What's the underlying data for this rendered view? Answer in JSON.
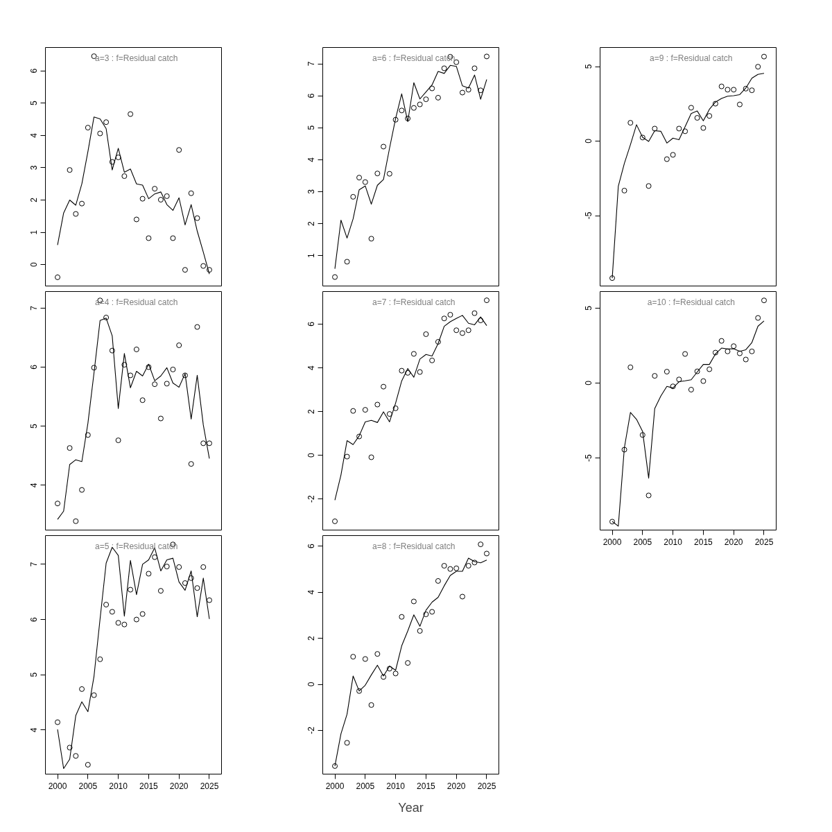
{
  "chart_data": [
    {
      "type": "line",
      "title": "a=3  :  f=Residual catch",
      "x": [
        2000,
        2001,
        2002,
        2003,
        2004,
        2005,
        2006,
        2007,
        2008,
        2009,
        2010,
        2011,
        2012,
        2013,
        2014,
        2015,
        2016,
        2017,
        2018,
        2019,
        2020,
        2021,
        2022,
        2023,
        2024,
        2025
      ],
      "xlim": [
        1998,
        2027
      ],
      "ylim": [
        -0.66,
        6.72
      ],
      "yticks": [
        0,
        1,
        2,
        3,
        4,
        5,
        6
      ],
      "tick_labels": "y",
      "series": [
        {
          "type": "scatter",
          "marker": "circle",
          "color": "#000000",
          "values": [
            -0.39,
            null,
            2.93,
            1.57,
            1.89,
            4.24,
            6.45,
            4.06,
            4.41,
            3.18,
            3.32,
            2.74,
            4.66,
            1.4,
            2.04,
            0.82,
            2.35,
            2.01,
            2.12,
            0.82,
            3.55,
            -0.16,
            2.21,
            1.44,
            -0.04,
            -0.16
          ]
        },
        {
          "color": "#000000",
          "values": [
            0.61,
            1.6,
            2.0,
            1.84,
            2.5,
            3.5,
            4.57,
            4.51,
            4.21,
            2.93,
            3.6,
            2.86,
            2.96,
            2.5,
            2.46,
            2.04,
            2.19,
            2.25,
            1.86,
            1.68,
            2.07,
            1.23,
            1.86,
            1.04,
            0.39,
            -0.29
          ]
        }
      ]
    },
    {
      "type": "line",
      "title": "a=6  :  f=Residual catch",
      "x": [
        2000,
        2001,
        2002,
        2003,
        2004,
        2005,
        2006,
        2007,
        2008,
        2009,
        2010,
        2011,
        2012,
        2013,
        2014,
        2015,
        2016,
        2017,
        2018,
        2019,
        2020,
        2021,
        2022,
        2023,
        2024,
        2025
      ],
      "xlim": [
        1998,
        2027
      ],
      "ylim": [
        0.05,
        7.51
      ],
      "yticks": [
        1,
        2,
        3,
        4,
        5,
        6,
        7
      ],
      "tick_labels": "y",
      "series": [
        {
          "type": "scatter",
          "marker": "circle",
          "color": "#000000",
          "values": [
            0.33,
            null,
            0.81,
            2.84,
            3.44,
            3.3,
            1.53,
            3.57,
            4.41,
            3.56,
            5.25,
            5.54,
            5.29,
            5.62,
            5.73,
            5.89,
            6.23,
            5.94,
            6.86,
            7.22,
            7.05,
            6.1,
            6.19,
            6.86,
            6.17,
            7.23
          ]
        },
        {
          "color": "#000000",
          "values": [
            0.59,
            2.11,
            1.55,
            2.15,
            3.06,
            3.18,
            2.61,
            3.2,
            3.38,
            4.36,
            5.29,
            6.06,
            5.19,
            6.41,
            5.9,
            6.12,
            6.34,
            6.76,
            6.7,
            6.95,
            6.92,
            6.31,
            6.24,
            6.65,
            5.89,
            6.51
          ]
        }
      ]
    },
    {
      "type": "line",
      "title": "a=9  :  f=Residual catch",
      "x": [
        2000,
        2001,
        2002,
        2003,
        2004,
        2005,
        2006,
        2007,
        2008,
        2009,
        2010,
        2011,
        2012,
        2013,
        2014,
        2015,
        2016,
        2017,
        2018,
        2019,
        2020,
        2021,
        2022,
        2023,
        2024,
        2025
      ],
      "xlim": [
        1998,
        2027
      ],
      "ylim": [
        -9.72,
        6.28
      ],
      "yticks": [
        -5,
        0,
        5
      ],
      "tick_labels": "y",
      "series": [
        {
          "type": "scatter",
          "marker": "circle",
          "color": "#000000",
          "values": [
            -9.19,
            null,
            -3.32,
            1.23,
            null,
            0.24,
            -3.01,
            0.84,
            null,
            -1.21,
            -0.92,
            0.84,
            0.66,
            2.24,
            1.56,
            0.88,
            1.69,
            2.51,
            3.67,
            3.45,
            3.45,
            2.46,
            3.52,
            3.41,
            4.99,
            5.67
          ]
        },
        {
          "color": "#000000",
          "values": [
            -9.19,
            -3.03,
            -1.49,
            -0.24,
            1.1,
            0.26,
            -0.02,
            0.7,
            0.66,
            -0.13,
            0.2,
            0.09,
            0.97,
            1.85,
            2.02,
            1.36,
            2.13,
            2.62,
            2.86,
            3.01,
            3.05,
            3.12,
            3.56,
            4.22,
            4.48,
            4.55
          ]
        }
      ]
    },
    {
      "type": "line",
      "title": "a=4  :  f=Residual catch",
      "x": [
        2000,
        2001,
        2002,
        2003,
        2004,
        2005,
        2006,
        2007,
        2008,
        2009,
        2010,
        2011,
        2012,
        2013,
        2014,
        2015,
        2016,
        2017,
        2018,
        2019,
        2020,
        2021,
        2022,
        2023,
        2024,
        2025
      ],
      "xlim": [
        1998,
        2027
      ],
      "ylim": [
        3.24,
        7.28
      ],
      "yticks": [
        4,
        5,
        6,
        7
      ],
      "tick_labels": "y",
      "series": [
        {
          "type": "scatter",
          "marker": "circle",
          "color": "#000000",
          "values": [
            3.69,
            null,
            4.63,
            3.39,
            3.92,
            4.85,
            5.99,
            7.13,
            6.84,
            6.28,
            4.76,
            6.04,
            5.86,
            6.3,
            5.44,
            6.0,
            5.71,
            5.13,
            5.72,
            5.96,
            6.37,
            5.86,
            4.36,
            6.68,
            4.71,
            4.71
          ]
        },
        {
          "color": "#000000",
          "values": [
            3.42,
            3.56,
            4.35,
            4.43,
            4.4,
            5.05,
            5.9,
            6.79,
            6.83,
            6.53,
            5.3,
            6.23,
            5.65,
            5.93,
            5.85,
            6.05,
            5.77,
            5.85,
            5.99,
            5.73,
            5.66,
            5.89,
            5.12,
            5.86,
            5.02,
            4.45
          ]
        }
      ]
    },
    {
      "type": "line",
      "title": "a=7  :  f=Residual catch",
      "x": [
        2000,
        2001,
        2002,
        2003,
        2004,
        2005,
        2006,
        2007,
        2008,
        2009,
        2010,
        2011,
        2012,
        2013,
        2014,
        2015,
        2016,
        2017,
        2018,
        2019,
        2020,
        2021,
        2022,
        2023,
        2024,
        2025
      ],
      "xlim": [
        1998,
        2027
      ],
      "ylim": [
        -3.42,
        7.49
      ],
      "yticks": [
        -2,
        0,
        2,
        4,
        6
      ],
      "tick_labels": "y",
      "series": [
        {
          "type": "scatter",
          "marker": "circle",
          "color": "#000000",
          "values": [
            -3.02,
            null,
            -0.06,
            2.03,
            0.86,
            2.08,
            -0.09,
            2.32,
            3.14,
            1.89,
            2.15,
            3.87,
            3.77,
            4.64,
            3.81,
            5.54,
            4.34,
            5.19,
            6.26,
            6.43,
            5.72,
            5.59,
            5.72,
            6.5,
            6.17,
            7.09
          ]
        },
        {
          "color": "#000000",
          "values": [
            -2.05,
            -0.9,
            0.67,
            0.49,
            0.89,
            1.53,
            1.6,
            1.5,
            1.99,
            1.53,
            2.39,
            3.4,
            3.97,
            3.57,
            4.4,
            4.61,
            4.54,
            5.11,
            5.9,
            6.11,
            6.26,
            6.4,
            6.04,
            5.97,
            6.33,
            5.93
          ]
        }
      ]
    },
    {
      "type": "line",
      "title": "a=10  :  f=Residual catch",
      "x": [
        2000,
        2001,
        2002,
        2003,
        2004,
        2005,
        2006,
        2007,
        2008,
        2009,
        2010,
        2011,
        2012,
        2013,
        2014,
        2015,
        2016,
        2017,
        2018,
        2019,
        2020,
        2021,
        2022,
        2023,
        2024,
        2025
      ],
      "xlim": [
        1998,
        2027
      ],
      "xticks": [
        2000,
        2005,
        2010,
        2015,
        2020,
        2025
      ],
      "ylim": [
        -9.8,
        6.1
      ],
      "yticks": [
        -5,
        0,
        5
      ],
      "series": [
        {
          "type": "scatter",
          "marker": "circle",
          "color": "#000000",
          "values": [
            -9.24,
            null,
            -4.44,
            1.05,
            null,
            -3.46,
            -7.49,
            0.48,
            null,
            0.76,
            -0.22,
            0.24,
            1.94,
            -0.44,
            0.78,
            0.13,
            0.92,
            2.03,
            2.81,
            2.11,
            2.46,
            1.98,
            1.57,
            2.11,
            4.34,
            5.51
          ]
        },
        {
          "color": "#000000",
          "values": [
            -9.22,
            -9.54,
            -4.31,
            -1.96,
            -2.42,
            -3.22,
            -6.34,
            -1.7,
            -0.87,
            -0.22,
            -0.33,
            0.09,
            0.15,
            0.22,
            0.74,
            1.24,
            1.24,
            1.94,
            2.33,
            2.27,
            2.29,
            2.11,
            2.22,
            2.7,
            3.79,
            4.14
          ]
        }
      ]
    },
    {
      "type": "line",
      "title": "a=5  :  f=Residual catch",
      "x": [
        2000,
        2001,
        2002,
        2003,
        2004,
        2005,
        2006,
        2007,
        2008,
        2009,
        2010,
        2011,
        2012,
        2013,
        2014,
        2015,
        2016,
        2017,
        2018,
        2019,
        2020,
        2021,
        2022,
        2023,
        2024,
        2025
      ],
      "xlim": [
        1998,
        2027
      ],
      "xticks": [
        2000,
        2005,
        2010,
        2015,
        2020,
        2025
      ],
      "ylim": [
        3.2,
        7.52
      ],
      "yticks": [
        4,
        5,
        6,
        7
      ],
      "series": [
        {
          "type": "scatter",
          "marker": "circle",
          "color": "#000000",
          "values": [
            4.14,
            null,
            3.68,
            3.53,
            4.74,
            3.37,
            4.63,
            5.28,
            6.27,
            6.14,
            5.94,
            5.91,
            6.54,
            6.0,
            6.1,
            6.83,
            7.13,
            6.52,
            6.96,
            7.36,
            6.95,
            6.66,
            6.75,
            6.57,
            6.95,
            6.35
          ]
        },
        {
          "color": "#000000",
          "values": [
            4.01,
            3.3,
            3.47,
            4.26,
            4.51,
            4.33,
            4.97,
            6.01,
            7.02,
            7.31,
            7.16,
            6.06,
            7.07,
            6.45,
            7.0,
            7.08,
            7.3,
            6.88,
            7.08,
            7.11,
            6.68,
            6.53,
            6.88,
            6.05,
            6.75,
            6.01
          ]
        }
      ]
    },
    {
      "type": "line",
      "title": "a=8  :  f=Residual catch",
      "xlabel": "Year",
      "x": [
        2000,
        2001,
        2002,
        2003,
        2004,
        2005,
        2006,
        2007,
        2008,
        2009,
        2010,
        2011,
        2012,
        2013,
        2014,
        2015,
        2016,
        2017,
        2018,
        2019,
        2020,
        2021,
        2022,
        2023,
        2024,
        2025
      ],
      "xlim": [
        1998,
        2027
      ],
      "xticks": [
        2000,
        2005,
        2010,
        2015,
        2020,
        2025
      ],
      "ylim": [
        -3.9,
        6.46
      ],
      "yticks": [
        -2,
        0,
        2,
        4,
        6
      ],
      "series": [
        {
          "type": "scatter",
          "marker": "circle",
          "color": "#000000",
          "values": [
            -3.55,
            null,
            -2.54,
            1.2,
            -0.29,
            1.1,
            -0.9,
            1.32,
            0.32,
            0.68,
            0.47,
            2.93,
            0.93,
            3.6,
            2.32,
            3.04,
            3.15,
            4.49,
            5.15,
            5.01,
            5.04,
            3.81,
            5.15,
            5.29,
            6.08,
            5.68
          ]
        },
        {
          "color": "#000000",
          "values": [
            -3.55,
            -2.15,
            -1.3,
            0.36,
            -0.29,
            -0.04,
            0.41,
            0.83,
            0.36,
            0.79,
            0.61,
            1.67,
            2.32,
            3.02,
            2.52,
            3.22,
            3.57,
            3.78,
            4.28,
            4.73,
            4.91,
            4.91,
            5.48,
            5.33,
            5.28,
            5.4
          ]
        }
      ]
    }
  ]
}
